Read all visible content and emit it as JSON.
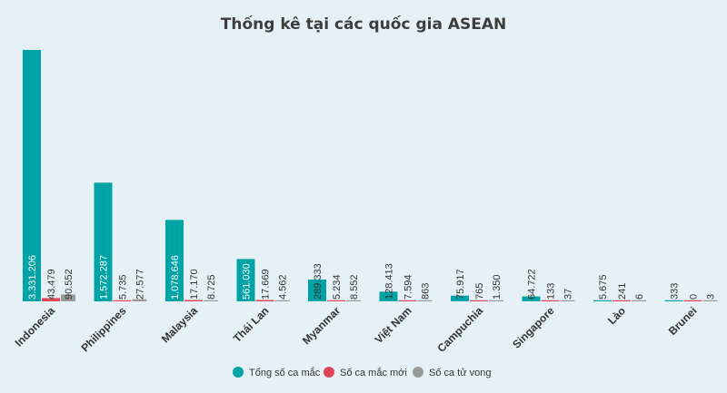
{
  "chart_data": {
    "type": "bar",
    "title": "Thống kê tại các quốc gia ASEAN",
    "categories": [
      "Indonesia",
      "Philippines",
      "Malaysia",
      "Thái Lan",
      "Myanmar",
      "Việt Nam",
      "Campuchia",
      "Singapore",
      "Lào",
      "Brunei"
    ],
    "series": [
      {
        "name": "Tổng số ca mắc",
        "color": "#00a3a6",
        "values": [
          3331206,
          1572287,
          1078646,
          561030,
          289333,
          128413,
          75917,
          64722,
          5675,
          333
        ],
        "labels": [
          "3.331.206",
          "1.572.287",
          "1.078.646",
          "561.030",
          "289.333",
          "128.413",
          "75.917",
          "64.722",
          "5.675",
          "333"
        ]
      },
      {
        "name": "Số ca mắc mới",
        "color": "#e04557",
        "values": [
          43479,
          5735,
          17170,
          17669,
          5234,
          7594,
          765,
          133,
          241,
          0
        ],
        "labels": [
          "43.479",
          "5.735",
          "17.170",
          "17.669",
          "5.234",
          "7.594",
          "765",
          "133",
          "241",
          "0"
        ]
      },
      {
        "name": "Số ca tử vong",
        "color": "#999999",
        "values": [
          90552,
          27577,
          8725,
          4562,
          8552,
          863,
          1350,
          37,
          6,
          3
        ],
        "labels": [
          "90.552",
          "27.577",
          "8.725",
          "4.562",
          "8.552",
          "863",
          "1.350",
          "37",
          "6",
          "3"
        ]
      }
    ],
    "ylim": [
      0,
      3331206
    ],
    "grid": false,
    "legend": "bottom-center",
    "xlabel": "",
    "ylabel": ""
  }
}
